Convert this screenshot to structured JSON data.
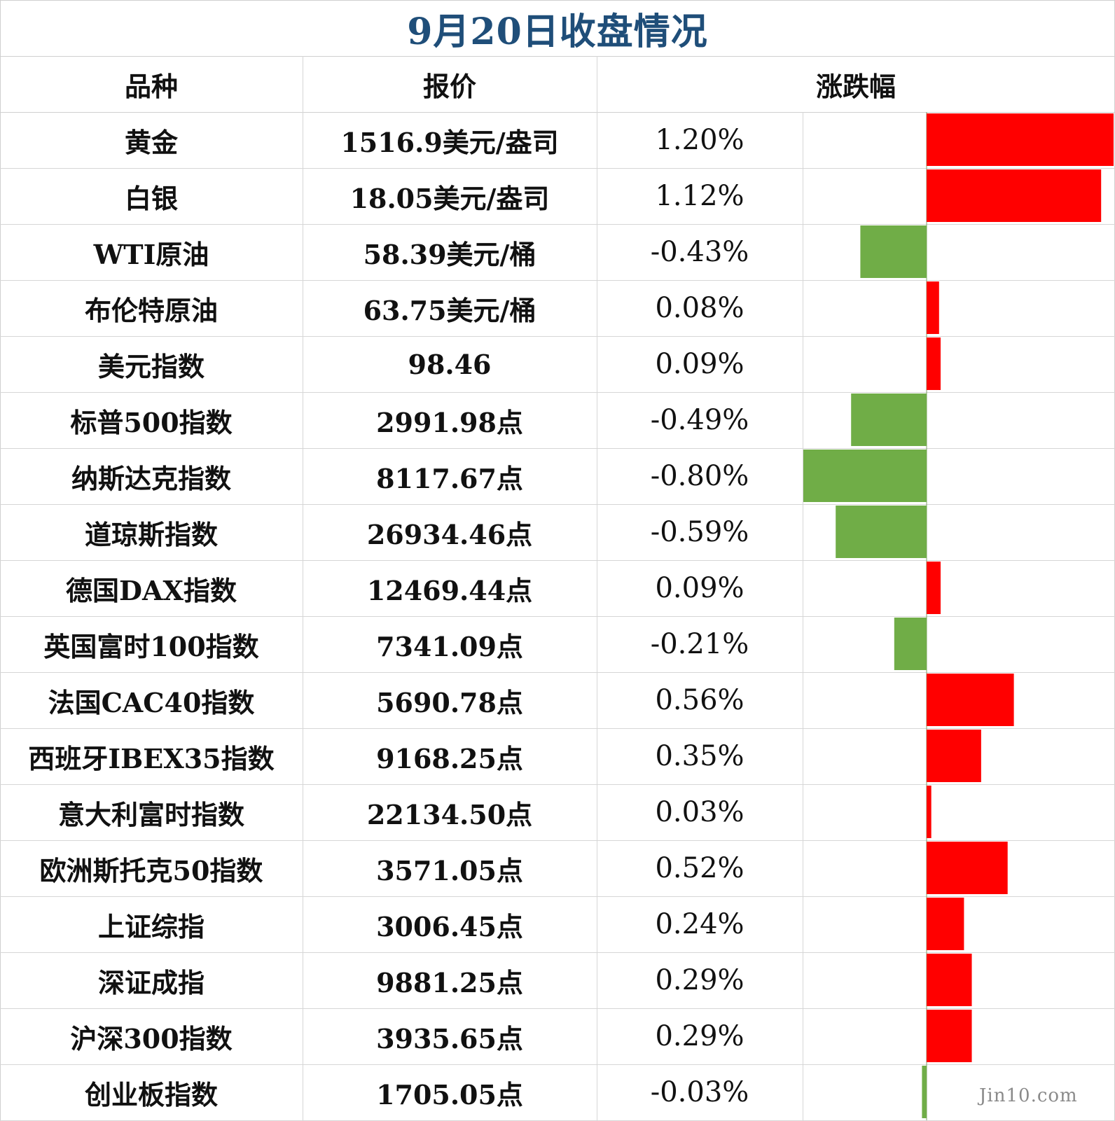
{
  "title": "9月20日收盘情况",
  "headers": {
    "name": "品种",
    "price": "报价",
    "change": "涨跌幅"
  },
  "watermark": "Jin10.com",
  "colors": {
    "up": "#ff0000",
    "down": "#70ad47",
    "title": "#1f4e79"
  },
  "rows": [
    {
      "name": "黄金",
      "price": "1516.9美元/盎司",
      "change_text": "1.20%"
    },
    {
      "name": "白银",
      "price": "18.05美元/盎司",
      "change_text": "1.12%"
    },
    {
      "name": "WTI原油",
      "price": "58.39美元/桶",
      "change_text": "-0.43%"
    },
    {
      "name": "布伦特原油",
      "price": "63.75美元/桶",
      "change_text": "0.08%"
    },
    {
      "name": "美元指数",
      "price": "98.46",
      "change_text": "0.09%"
    },
    {
      "name": "标普500指数",
      "price": "2991.98点",
      "change_text": "-0.49%"
    },
    {
      "name": "纳斯达克指数",
      "price": "8117.67点",
      "change_text": "-0.80%"
    },
    {
      "name": "道琼斯指数",
      "price": "26934.46点",
      "change_text": "-0.59%"
    },
    {
      "name": "德国DAX指数",
      "price": "12469.44点",
      "change_text": "0.09%"
    },
    {
      "name": "英国富时100指数",
      "price": "7341.09点",
      "change_text": "-0.21%"
    },
    {
      "name": "法国CAC40指数",
      "price": "5690.78点",
      "change_text": "0.56%"
    },
    {
      "name": "西班牙IBEX35指数",
      "price": "9168.25点",
      "change_text": "0.35%"
    },
    {
      "name": "意大利富时指数",
      "price": "22134.50点",
      "change_text": "0.03%"
    },
    {
      "name": "欧洲斯托克50指数",
      "price": "3571.05点",
      "change_text": "0.52%"
    },
    {
      "name": "上证综指",
      "price": "3006.45点",
      "change_text": "0.24%"
    },
    {
      "name": "深证成指",
      "price": "9881.25点",
      "change_text": "0.29%"
    },
    {
      "name": "沪深300指数",
      "price": "3935.65点",
      "change_text": "0.29%"
    },
    {
      "name": "创业板指数",
      "price": "1705.05点",
      "change_text": "-0.03%"
    }
  ],
  "chart_data": {
    "type": "bar",
    "orientation": "horizontal",
    "title": "9月20日收盘情况",
    "categories": [
      "黄金",
      "白银",
      "WTI原油",
      "布伦特原油",
      "美元指数",
      "标普500指数",
      "纳斯达克指数",
      "道琼斯指数",
      "德国DAX指数",
      "英国富时100指数",
      "法国CAC40指数",
      "西班牙IBEX35指数",
      "意大利富时指数",
      "欧洲斯托克50指数",
      "上证综指",
      "深证成指",
      "沪深300指数",
      "创业板指数"
    ],
    "values": [
      1.2,
      1.12,
      -0.43,
      0.08,
      0.09,
      -0.49,
      -0.8,
      -0.59,
      0.09,
      -0.21,
      0.56,
      0.35,
      0.03,
      0.52,
      0.24,
      0.29,
      0.29,
      -0.03
    ],
    "unit": "%",
    "xlim": [
      -0.8,
      1.2
    ],
    "grid": false
  }
}
